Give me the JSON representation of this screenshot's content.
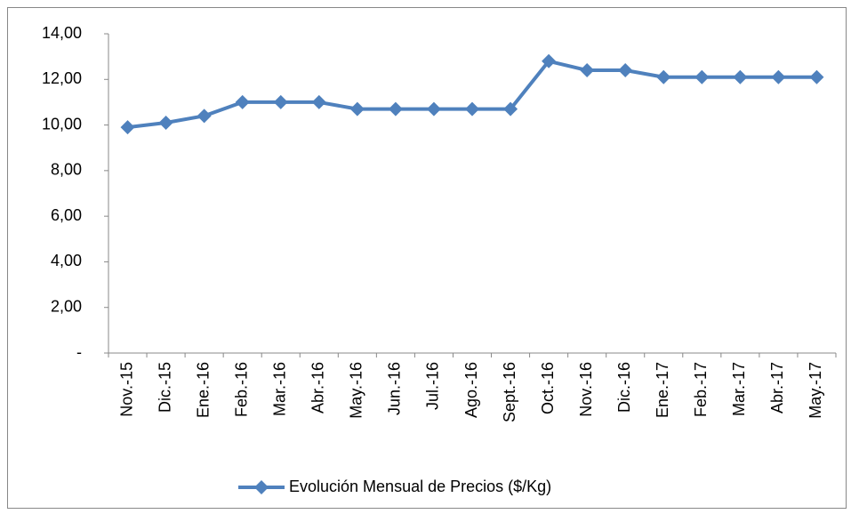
{
  "chart_data": {
    "type": "line",
    "categories": [
      "Nov.-15",
      "Dic.-15",
      "Ene.-16",
      "Feb.-16",
      "Mar.-16",
      "Abr.-16",
      "May.-16",
      "Jun.-16",
      "Jul.-16",
      "Ago.-16",
      "Sept.-16",
      "Oct.-16",
      "Nov.-16",
      "Dic.-16",
      "Ene.-17",
      "Feb.-17",
      "Mar.-17",
      "Abr.-17",
      "May.-17"
    ],
    "series": [
      {
        "name": "Evolución Mensual de Precios ($/Kg)",
        "color": "#4f81bd",
        "values": [
          9.9,
          10.1,
          10.4,
          11.0,
          11.0,
          11.0,
          10.7,
          10.7,
          10.7,
          10.7,
          10.7,
          12.8,
          12.4,
          12.4,
          12.1,
          12.1,
          12.1,
          12.1,
          12.1
        ]
      }
    ],
    "ylim": [
      0,
      14
    ],
    "yticks": [
      {
        "value": 0,
        "label": "-"
      },
      {
        "value": 2,
        "label": "2,00"
      },
      {
        "value": 4,
        "label": "4,00"
      },
      {
        "value": 6,
        "label": "6,00"
      },
      {
        "value": 8,
        "label": "8,00"
      },
      {
        "value": 10,
        "label": "10,00"
      },
      {
        "value": 12,
        "label": "12,00"
      },
      {
        "value": 14,
        "label": "14,00"
      }
    ],
    "grid": false,
    "legend": "bottom"
  }
}
